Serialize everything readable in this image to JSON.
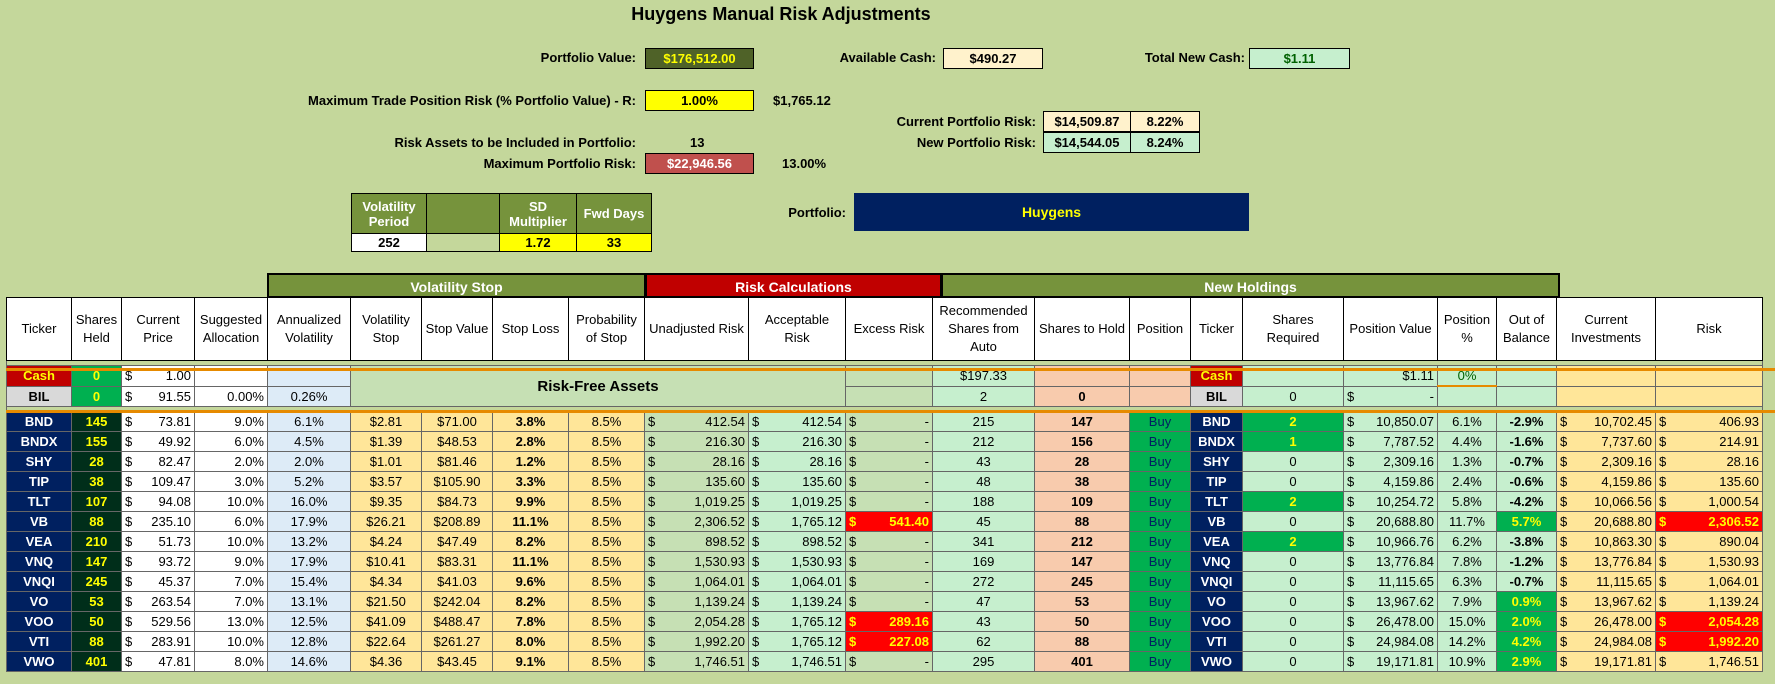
{
  "title": "Huygens Manual Risk Adjustments",
  "header": {
    "portfolio_value_label": "Portfolio Value:",
    "portfolio_value": "$176,512.00",
    "available_cash_label": "Available Cash:",
    "available_cash": "$490.27",
    "total_new_cash_label": "Total New Cash:",
    "total_new_cash": "$1.11",
    "max_trade_risk_label": "Maximum Trade Position Risk (% Portfolio Value) - R:",
    "max_trade_risk_pct": "1.00%",
    "max_trade_risk_amt": "$1,765.12",
    "current_risk_label": "Current Portfolio Risk:",
    "current_risk_amt": "$14,509.87",
    "current_risk_pct": "8.22%",
    "new_risk_label": "New Portfolio Risk:",
    "new_risk_amt": "$14,544.05",
    "new_risk_pct": "8.24%",
    "risk_assets_label": "Risk Assets to be Included in Portfolio:",
    "risk_assets": "13",
    "max_portfolio_risk_label": "Maximum Portfolio Risk:",
    "max_portfolio_risk_amt": "$22,946.56",
    "max_portfolio_risk_pct": "13.00%",
    "portfolio_label": "Portfolio:",
    "portfolio_name": "Huygens"
  },
  "params": {
    "vol_period_label": "Volatility Period",
    "sd_mult_label": "SD Multiplier",
    "fwd_days_label": "Fwd Days",
    "vol_period": "252",
    "sd_mult": "1.72",
    "fwd_days": "33"
  },
  "groups": {
    "vol_stop": "Volatility Stop",
    "risk_calc": "Risk Calculations",
    "new_holdings": "New Holdings"
  },
  "columns": [
    "Ticker",
    "Shares Held",
    "Current Price",
    "Suggested Allocation",
    "Annualized Volatility",
    "Volatility Stop",
    "Stop Value",
    "Stop Loss",
    "Probability of Stop",
    "Unadjusted Risk",
    "Acceptable Risk",
    "Excess Risk",
    "Recommended Shares from Auto",
    "Shares to Hold",
    "Position",
    "Ticker",
    "Shares Required",
    "Position Value",
    "Position %",
    "Out of Balance",
    "Current Investments",
    "Risk"
  ],
  "cash_row": {
    "ticker": "Cash",
    "shares": "0",
    "price": "1.00",
    "rec": "$197.33",
    "ticker2": "Cash",
    "pos_value": "$1.11",
    "pos_pct": "0%"
  },
  "bil_row": {
    "ticker": "BIL",
    "shares": "0",
    "price": "91.55",
    "alloc": "0.00%",
    "vol": "0.26%",
    "rec": "2",
    "hold": "0",
    "ticker2": "BIL",
    "req": "0",
    "pos_value": "-"
  },
  "risk_free_label": "Risk-Free Assets",
  "rows": [
    {
      "t": "BND",
      "sh": "145",
      "p": "73.81",
      "al": "9.0%",
      "av": "6.1%",
      "vs": "$2.81",
      "sv": "$71.00",
      "sl": "3.8%",
      "ps": "8.5%",
      "ur": "412.54",
      "ar": "412.54",
      "er": "-",
      "rec": "215",
      "hold": "147",
      "pos": "Buy",
      "req": "2",
      "pv": "10,850.07",
      "pp": "6.1%",
      "ob": "-2.9%",
      "ci": "10,702.45",
      "risk": "406.93",
      "erRed": false,
      "obGreen": false,
      "riskRed": false
    },
    {
      "t": "BNDX",
      "sh": "155",
      "p": "49.92",
      "al": "6.0%",
      "av": "4.5%",
      "vs": "$1.39",
      "sv": "$48.53",
      "sl": "2.8%",
      "ps": "8.5%",
      "ur": "216.30",
      "ar": "216.30",
      "er": "-",
      "rec": "212",
      "hold": "156",
      "pos": "Buy",
      "req": "1",
      "pv": "7,787.52",
      "pp": "4.4%",
      "ob": "-1.6%",
      "ci": "7,737.60",
      "risk": "214.91",
      "erRed": false,
      "obGreen": false,
      "riskRed": false
    },
    {
      "t": "SHY",
      "sh": "28",
      "p": "82.47",
      "al": "2.0%",
      "av": "2.0%",
      "vs": "$1.01",
      "sv": "$81.46",
      "sl": "1.2%",
      "ps": "8.5%",
      "ur": "28.16",
      "ar": "28.16",
      "er": "-",
      "rec": "43",
      "hold": "28",
      "pos": "Buy",
      "req": "0",
      "pv": "2,309.16",
      "pp": "1.3%",
      "ob": "-0.7%",
      "ci": "2,309.16",
      "risk": "28.16",
      "erRed": false,
      "obGreen": false,
      "riskRed": false
    },
    {
      "t": "TIP",
      "sh": "38",
      "p": "109.47",
      "al": "3.0%",
      "av": "5.2%",
      "vs": "$3.57",
      "sv": "$105.90",
      "sl": "3.3%",
      "ps": "8.5%",
      "ur": "135.60",
      "ar": "135.60",
      "er": "-",
      "rec": "48",
      "hold": "38",
      "pos": "Buy",
      "req": "0",
      "pv": "4,159.86",
      "pp": "2.4%",
      "ob": "-0.6%",
      "ci": "4,159.86",
      "risk": "135.60",
      "erRed": false,
      "obGreen": false,
      "riskRed": false
    },
    {
      "t": "TLT",
      "sh": "107",
      "p": "94.08",
      "al": "10.0%",
      "av": "16.0%",
      "vs": "$9.35",
      "sv": "$84.73",
      "sl": "9.9%",
      "ps": "8.5%",
      "ur": "1,019.25",
      "ar": "1,019.25",
      "er": "-",
      "rec": "188",
      "hold": "109",
      "pos": "Buy",
      "req": "2",
      "pv": "10,254.72",
      "pp": "5.8%",
      "ob": "-4.2%",
      "ci": "10,066.56",
      "risk": "1,000.54",
      "erRed": false,
      "obGreen": false,
      "riskRed": false
    },
    {
      "t": "VB",
      "sh": "88",
      "p": "235.10",
      "al": "6.0%",
      "av": "17.9%",
      "vs": "$26.21",
      "sv": "$208.89",
      "sl": "11.1%",
      "ps": "8.5%",
      "ur": "2,306.52",
      "ar": "1,765.12",
      "er": "541.40",
      "rec": "45",
      "hold": "88",
      "pos": "Buy",
      "req": "0",
      "pv": "20,688.80",
      "pp": "11.7%",
      "ob": "5.7%",
      "ci": "20,688.80",
      "risk": "2,306.52",
      "erRed": true,
      "obGreen": true,
      "riskRed": true
    },
    {
      "t": "VEA",
      "sh": "210",
      "p": "51.73",
      "al": "10.0%",
      "av": "13.2%",
      "vs": "$4.24",
      "sv": "$47.49",
      "sl": "8.2%",
      "ps": "8.5%",
      "ur": "898.52",
      "ar": "898.52",
      "er": "-",
      "rec": "341",
      "hold": "212",
      "pos": "Buy",
      "req": "2",
      "pv": "10,966.76",
      "pp": "6.2%",
      "ob": "-3.8%",
      "ci": "10,863.30",
      "risk": "890.04",
      "erRed": false,
      "obGreen": false,
      "riskRed": false
    },
    {
      "t": "VNQ",
      "sh": "147",
      "p": "93.72",
      "al": "9.0%",
      "av": "17.9%",
      "vs": "$10.41",
      "sv": "$83.31",
      "sl": "11.1%",
      "ps": "8.5%",
      "ur": "1,530.93",
      "ar": "1,530.93",
      "er": "-",
      "rec": "169",
      "hold": "147",
      "pos": "Buy",
      "req": "0",
      "pv": "13,776.84",
      "pp": "7.8%",
      "ob": "-1.2%",
      "ci": "13,776.84",
      "risk": "1,530.93",
      "erRed": false,
      "obGreen": false,
      "riskRed": false
    },
    {
      "t": "VNQI",
      "sh": "245",
      "p": "45.37",
      "al": "7.0%",
      "av": "15.4%",
      "vs": "$4.34",
      "sv": "$41.03",
      "sl": "9.6%",
      "ps": "8.5%",
      "ur": "1,064.01",
      "ar": "1,064.01",
      "er": "-",
      "rec": "272",
      "hold": "245",
      "pos": "Buy",
      "req": "0",
      "pv": "11,115.65",
      "pp": "6.3%",
      "ob": "-0.7%",
      "ci": "11,115.65",
      "risk": "1,064.01",
      "erRed": false,
      "obGreen": false,
      "riskRed": false
    },
    {
      "t": "VO",
      "sh": "53",
      "p": "263.54",
      "al": "7.0%",
      "av": "13.1%",
      "vs": "$21.50",
      "sv": "$242.04",
      "sl": "8.2%",
      "ps": "8.5%",
      "ur": "1,139.24",
      "ar": "1,139.24",
      "er": "-",
      "rec": "47",
      "hold": "53",
      "pos": "Buy",
      "req": "0",
      "pv": "13,967.62",
      "pp": "7.9%",
      "ob": "0.9%",
      "ci": "13,967.62",
      "risk": "1,139.24",
      "erRed": false,
      "obGreen": true,
      "riskRed": false
    },
    {
      "t": "VOO",
      "sh": "50",
      "p": "529.56",
      "al": "13.0%",
      "av": "12.5%",
      "vs": "$41.09",
      "sv": "$488.47",
      "sl": "7.8%",
      "ps": "8.5%",
      "ur": "2,054.28",
      "ar": "1,765.12",
      "er": "289.16",
      "rec": "43",
      "hold": "50",
      "pos": "Buy",
      "req": "0",
      "pv": "26,478.00",
      "pp": "15.0%",
      "ob": "2.0%",
      "ci": "26,478.00",
      "risk": "2,054.28",
      "erRed": true,
      "obGreen": true,
      "riskRed": true
    },
    {
      "t": "VTI",
      "sh": "88",
      "p": "283.91",
      "al": "10.0%",
      "av": "12.8%",
      "vs": "$22.64",
      "sv": "$261.27",
      "sl": "8.0%",
      "ps": "8.5%",
      "ur": "1,992.20",
      "ar": "1,765.12",
      "er": "227.08",
      "rec": "62",
      "hold": "88",
      "pos": "Buy",
      "req": "0",
      "pv": "24,984.08",
      "pp": "14.2%",
      "ob": "4.2%",
      "ci": "24,984.08",
      "risk": "1,992.20",
      "erRed": true,
      "obGreen": true,
      "riskRed": true
    },
    {
      "t": "VWO",
      "sh": "401",
      "p": "47.81",
      "al": "8.0%",
      "av": "14.6%",
      "vs": "$4.36",
      "sv": "$43.45",
      "sl": "9.1%",
      "ps": "8.5%",
      "ur": "1,746.51",
      "ar": "1,746.51",
      "er": "-",
      "rec": "295",
      "hold": "401",
      "pos": "Buy",
      "req": "0",
      "pv": "19,171.81",
      "pp": "10.9%",
      "ob": "2.9%",
      "ci": "19,171.81",
      "risk": "1,746.51",
      "erRed": false,
      "obGreen": true,
      "riskRed": false
    }
  ]
}
